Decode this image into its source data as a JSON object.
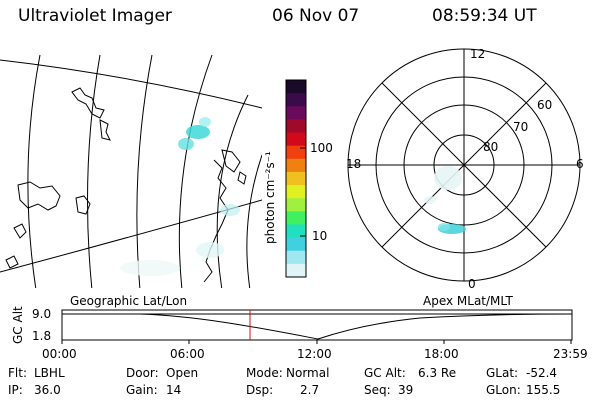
{
  "header": {
    "title": "Ultraviolet Imager",
    "date": "06 Nov 07",
    "time": "08:59:34 UT"
  },
  "colorbar": {
    "label": "photon cm⁻²s⁻¹",
    "ticks": [
      "100",
      "10"
    ],
    "colors": [
      "#1a0a2a",
      "#3a0a4a",
      "#6a0a5a",
      "#a00a2a",
      "#d00a1a",
      "#f04010",
      "#f08010",
      "#f0c020",
      "#e0f020",
      "#a0f040",
      "#40f060",
      "#20e0c0",
      "#40d0e0",
      "#a0e8f0",
      "#e0f4f8"
    ]
  },
  "maps": {
    "left_label": "Geographic Lat/Lon",
    "right_label": "Apex MLat/MLT"
  },
  "polar": {
    "mlt_labels": {
      "top": "12",
      "left": "18",
      "right": "6",
      "bottom": "0"
    },
    "mlat_labels": [
      "60",
      "70",
      "80"
    ]
  },
  "altitude_plot": {
    "ylabel": "GC Alt",
    "y_ticks": [
      "9.0",
      "1.8"
    ],
    "x_ticks": [
      "00:00",
      "06:00",
      "12:00",
      "18:00",
      "23:59"
    ]
  },
  "footer": {
    "filt_label": "Flt:",
    "filt_value": "LBHL",
    "door_label": "Door:",
    "door_value": "Open",
    "mode_label": "Mode:",
    "mode_value": "Normal",
    "gcalt_label": "GC Alt:",
    "gcalt_value": "6.3 Re",
    "glat_label": "GLat:",
    "glat_value": "-52.4",
    "ip_label": "IP:",
    "ip_value": "36.0",
    "gain_label": "Gain:",
    "gain_value": "14",
    "dsp_label": "Dsp:",
    "dsp_value": "2.7",
    "seq_label": "Seq:",
    "seq_value": "39",
    "glon_label": "GLon:",
    "glon_value": "155.5"
  }
}
